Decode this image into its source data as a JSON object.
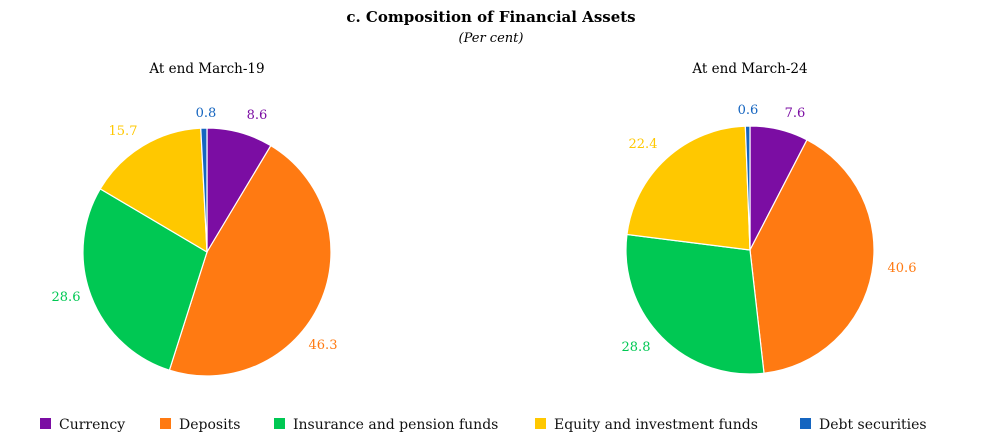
{
  "chart_data": {
    "type": "pie",
    "title": "c. Composition of Financial Assets",
    "subtitle": "(Per cent)",
    "categories": [
      "Currency",
      "Deposits",
      "Insurance and pension funds",
      "Equity and investment funds",
      "Debt securities"
    ],
    "colors": [
      "#7B0DA3",
      "#FF7A12",
      "#00C853",
      "#FFC800",
      "#1565C0"
    ],
    "legend_position": "bottom",
    "pies": [
      {
        "title": "At end March-19",
        "values": [
          8.6,
          46.3,
          28.6,
          15.7,
          0.8
        ],
        "labels": [
          "8.6",
          "46.3",
          "28.6",
          "15.7",
          "0.8"
        ]
      },
      {
        "title": "At end March-24",
        "values": [
          7.6,
          40.6,
          28.8,
          22.4,
          0.6
        ],
        "labels": [
          "7.6",
          "40.6",
          "28.8",
          "22.4",
          "0.6"
        ]
      }
    ]
  }
}
